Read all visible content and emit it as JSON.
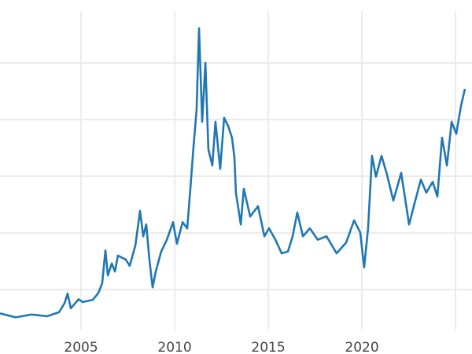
{
  "chart_data": {
    "type": "line",
    "title": "",
    "xlabel": "",
    "ylabel": "",
    "xlim": [
      2000.67,
      2025.88
    ],
    "ylim": [
      2.8,
      59.7
    ],
    "grid": true,
    "x_ticks": [
      2005,
      2010,
      2015,
      2020,
      2025
    ],
    "x_tick_labels": [
      "2005",
      "2010",
      "2015",
      "2020",
      ""
    ],
    "y_gridlines": [
      10,
      20,
      30,
      40,
      50
    ],
    "color": "#1f77b4",
    "series": [
      {
        "x": [
          2000.67,
          2001.51,
          2002.35,
          2003.19,
          2003.82,
          2004.12,
          2004.28,
          2004.45,
          2004.87,
          2005.08,
          2005.63,
          2005.92,
          2006.13,
          2006.3,
          2006.43,
          2006.64,
          2006.81,
          2006.97,
          2007.39,
          2007.6,
          2007.9,
          2008.15,
          2008.32,
          2008.48,
          2008.65,
          2008.82,
          2008.99,
          2009.28,
          2009.58,
          2009.91,
          2010.12,
          2010.42,
          2010.67,
          2010.84,
          2011.01,
          2011.17,
          2011.3,
          2011.47,
          2011.64,
          2011.8,
          2012.01,
          2012.18,
          2012.43,
          2012.64,
          2012.85,
          2013.06,
          2013.19,
          2013.27,
          2013.53,
          2013.69,
          2014.03,
          2014.45,
          2014.79,
          2015.04,
          2015.38,
          2015.71,
          2016.05,
          2016.3,
          2016.55,
          2016.85,
          2017.22,
          2017.64,
          2018.11,
          2018.65,
          2019.16,
          2019.58,
          2019.91,
          2020.12,
          2020.33,
          2020.54,
          2020.75,
          2021.05,
          2021.34,
          2021.68,
          2022.1,
          2022.52,
          2022.85,
          2023.15,
          2023.44,
          2023.78,
          2024.03,
          2024.28,
          2024.54,
          2024.79,
          2025.04,
          2025.29,
          2025.5
        ],
        "y": [
          5.8,
          5.1,
          5.6,
          5.3,
          6.0,
          7.6,
          9.3,
          6.7,
          8.3,
          7.8,
          8.2,
          9.4,
          11.1,
          16.9,
          12.5,
          14.6,
          13.2,
          16.0,
          15.3,
          14.2,
          17.8,
          23.9,
          19.4,
          21.5,
          15.3,
          10.4,
          13.2,
          16.7,
          18.8,
          21.9,
          18.1,
          21.9,
          20.8,
          27.8,
          35.4,
          41.7,
          56.1,
          39.6,
          50.0,
          34.7,
          31.9,
          39.6,
          31.3,
          40.3,
          38.9,
          36.8,
          33.3,
          27.1,
          21.5,
          27.8,
          22.9,
          24.7,
          19.4,
          20.8,
          18.8,
          16.4,
          16.7,
          19.4,
          23.6,
          19.4,
          20.8,
          18.8,
          19.4,
          16.4,
          18.3,
          22.2,
          20.1,
          13.9,
          20.8,
          33.6,
          29.9,
          33.6,
          30.3,
          25.7,
          30.6,
          21.5,
          25.7,
          29.4,
          27.1,
          29.0,
          26.4,
          36.8,
          31.9,
          39.6,
          37.5,
          42.4,
          45.4
        ]
      }
    ]
  }
}
